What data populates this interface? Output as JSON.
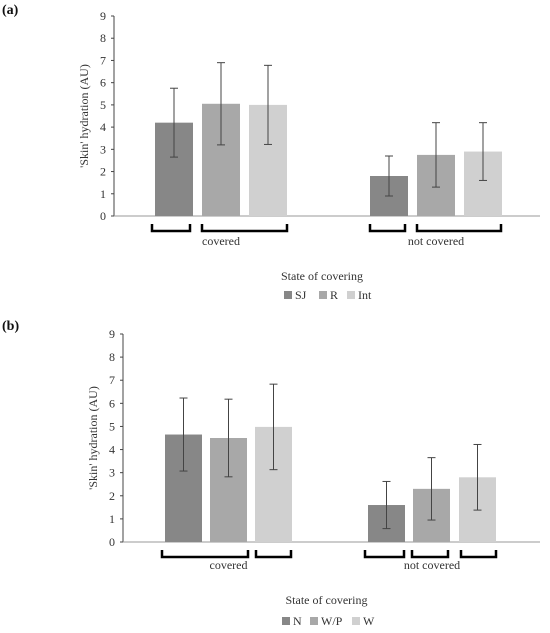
{
  "chart_data": [
    {
      "type": "bar",
      "panel_label": "(a)",
      "categories": [
        "covered",
        "not covered"
      ],
      "series": [
        {
          "name": "SJ",
          "color": "#878787",
          "values": [
            4.2,
            1.8
          ],
          "errors": [
            1.55,
            0.9
          ]
        },
        {
          "name": "R",
          "color": "#a8a8a8",
          "values": [
            5.05,
            2.75
          ],
          "errors": [
            1.85,
            1.45
          ]
        },
        {
          "name": "Int",
          "color": "#d0d0d0",
          "values": [
            5.0,
            2.9
          ],
          "errors": [
            1.78,
            1.3
          ]
        }
      ],
      "title": "",
      "xlabel": "State of covering",
      "ylabel": "'Skin' hydration (AU)",
      "ylim": [
        0,
        9
      ],
      "yticks": [
        "0",
        "1",
        "2",
        "3",
        "4",
        "5",
        "6",
        "7",
        "8",
        "9"
      ],
      "brackets": [
        [
          "SJ"
        ],
        [
          "R",
          "Int"
        ]
      ],
      "grid": false,
      "legend": "bottom"
    },
    {
      "type": "bar",
      "panel_label": "(b)",
      "categories": [
        "covered",
        "not covered"
      ],
      "series": [
        {
          "name": "N",
          "color": "#878787",
          "values": [
            4.65,
            1.6
          ],
          "errors": [
            1.58,
            1.02
          ]
        },
        {
          "name": "W/P",
          "color": "#a8a8a8",
          "values": [
            4.5,
            2.3
          ],
          "errors": [
            1.68,
            1.35
          ]
        },
        {
          "name": "W",
          "color": "#d0d0d0",
          "values": [
            4.98,
            2.8
          ],
          "errors": [
            1.85,
            1.42
          ]
        }
      ],
      "title": "",
      "xlabel": "State of covering",
      "ylabel": "'Skin' hydration (AU)",
      "ylim": [
        0,
        9
      ],
      "yticks": [
        "0",
        "1",
        "2",
        "3",
        "4",
        "5",
        "6",
        "7",
        "8",
        "9"
      ],
      "brackets": [
        [
          "N",
          "W/P"
        ],
        [
          "W"
        ]
      ],
      "grid": false,
      "legend": "bottom"
    }
  ]
}
